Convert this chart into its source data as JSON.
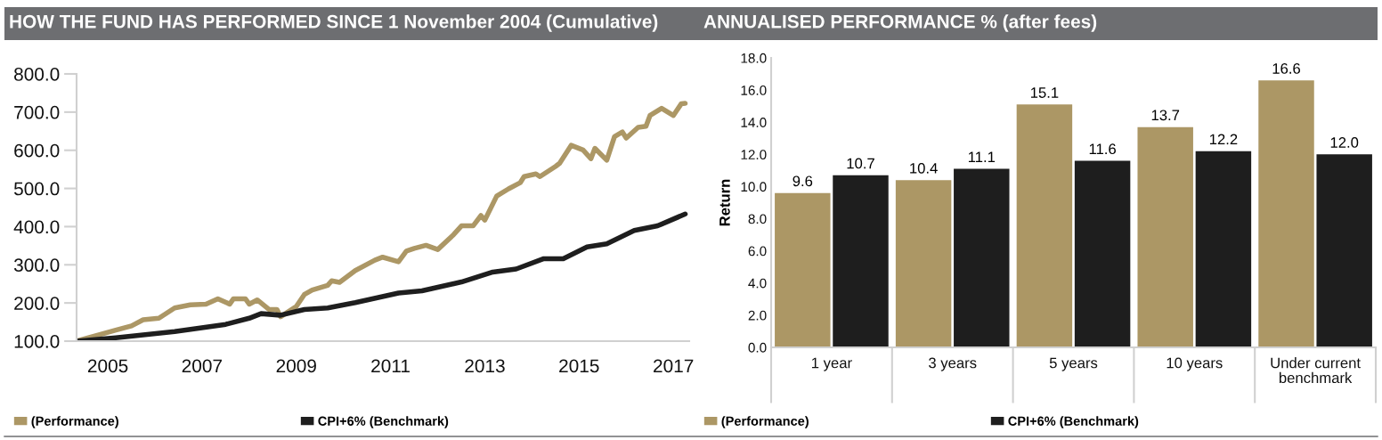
{
  "chart_data": [
    {
      "type": "line",
      "title": "HOW THE FUND HAS PERFORMED SINCE 1 November 2004 (Cumulative)",
      "series": [
        {
          "name": "(Performance)",
          "color": "#ac9765",
          "x": [
            "2004-11",
            "2005-09",
            "2006-01",
            "2006-04",
            "2006-08",
            "2006-12",
            "2007-04",
            "2007-08",
            "2007-11",
            "2008-02",
            "2008-03",
            "2008-06",
            "2008-07",
            "2008-09",
            "2008-12",
            "2009-02",
            "2009-03",
            "2009-07",
            "2009-09",
            "2009-11",
            "2010-03",
            "2010-04",
            "2010-06",
            "2010-10",
            "2011-03",
            "2011-05",
            "2011-09",
            "2011-11",
            "2012-01",
            "2012-04",
            "2012-07",
            "2012-11",
            "2013-01",
            "2013-04",
            "2013-06",
            "2013-07",
            "2013-10",
            "2014-01",
            "2014-04",
            "2014-05",
            "2014-08",
            "2014-09",
            "2015-01",
            "2015-02",
            "2015-05",
            "2015-08",
            "2015-10",
            "2015-11",
            "2016-02",
            "2016-04",
            "2016-06",
            "2016-07",
            "2016-10",
            "2016-12",
            "2017-01",
            "2017-04",
            "2017-07",
            "2017-09",
            "2017-10"
          ],
          "values": [
            100,
            129,
            140,
            156,
            160,
            187,
            195,
            197,
            211,
            197,
            211,
            211,
            197,
            208,
            183,
            183,
            164,
            191,
            222,
            234,
            246,
            258,
            254,
            285,
            312,
            320,
            308,
            336,
            343,
            351,
            340,
            379,
            402,
            402,
            429,
            417,
            480,
            499,
            515,
            531,
            538,
            531,
            558,
            566,
            613,
            601,
            578,
            605,
            574,
            636,
            648,
            632,
            660,
            663,
            691,
            710,
            691,
            722,
            723
          ]
        },
        {
          "name": "CPI+6% (Benchmark)",
          "color": "#1e1e1e",
          "x": [
            "2004-11",
            "2005-09",
            "2006-12",
            "2008-01",
            "2008-07",
            "2008-10",
            "2009-03",
            "2009-09",
            "2010-03",
            "2010-10",
            "2011-09",
            "2012-03",
            "2013-01",
            "2013-09",
            "2014-03",
            "2014-10",
            "2015-03",
            "2015-09",
            "2016-02",
            "2016-09",
            "2017-03",
            "2017-10"
          ],
          "values": [
            100,
            109,
            125,
            144,
            160,
            172,
            168,
            183,
            187,
            201,
            226,
            232,
            255,
            281,
            289,
            316,
            316,
            347,
            355,
            390,
            402,
            433
          ]
        }
      ],
      "xlim": [
        "2004-11",
        "2017-11"
      ],
      "xticks": [
        {
          "value": "2005-07",
          "label": "2005"
        },
        {
          "value": "2007-07",
          "label": "2007"
        },
        {
          "value": "2009-07",
          "label": "2009"
        },
        {
          "value": "2011-07",
          "label": "2011"
        },
        {
          "value": "2013-07",
          "label": "2013"
        },
        {
          "value": "2015-07",
          "label": "2015"
        },
        {
          "value": "2017-07",
          "label": "2017"
        }
      ],
      "ylim": [
        100,
        800
      ],
      "yticks": [
        {
          "value": 100,
          "label": "100.0"
        },
        {
          "value": 200,
          "label": "200.0"
        },
        {
          "value": 300,
          "label": "300.0"
        },
        {
          "value": 400,
          "label": "400.0"
        },
        {
          "value": 500,
          "label": "500.0"
        },
        {
          "value": 600,
          "label": "600.0"
        },
        {
          "value": 700,
          "label": "700.0"
        },
        {
          "value": 800,
          "label": "800.0"
        }
      ],
      "grid": false,
      "legend": "bottom",
      "marker": "none",
      "line_style": "solid"
    },
    {
      "type": "bar",
      "title": "ANNUALISED PERFORMANCE % (after fees)",
      "ylabel": "Return",
      "categories": [
        "1 year",
        "3 years",
        "5 years",
        "10 years",
        "Under current\nbenchmark"
      ],
      "series": [
        {
          "name": "(Performance)",
          "color": "#ac9765",
          "values": [
            9.6,
            10.4,
            15.1,
            13.7,
            16.6
          ],
          "value_labels": [
            "9.6",
            "10.4",
            "15.1",
            "13.7",
            "16.6"
          ]
        },
        {
          "name": "CPI+6% (Benchmark)",
          "color": "#1e1e1e",
          "values": [
            10.7,
            11.1,
            11.6,
            12.2,
            12.0
          ],
          "value_labels": [
            "10.7",
            "11.1",
            "11.6",
            "12.2",
            "12.0"
          ]
        }
      ],
      "ylim": [
        0,
        18
      ],
      "yticks": [
        {
          "value": 0,
          "label": "0.0"
        },
        {
          "value": 2,
          "label": "2.0"
        },
        {
          "value": 4,
          "label": "4.0"
        },
        {
          "value": 6,
          "label": "6.0"
        },
        {
          "value": 8,
          "label": "8.0"
        },
        {
          "value": 10,
          "label": "10.0"
        },
        {
          "value": 12,
          "label": "12.0"
        },
        {
          "value": 14,
          "label": "14.0"
        },
        {
          "value": 16,
          "label": "16.0"
        },
        {
          "value": 18,
          "label": "18.0"
        }
      ],
      "grid": false,
      "legend": "bottom"
    }
  ]
}
